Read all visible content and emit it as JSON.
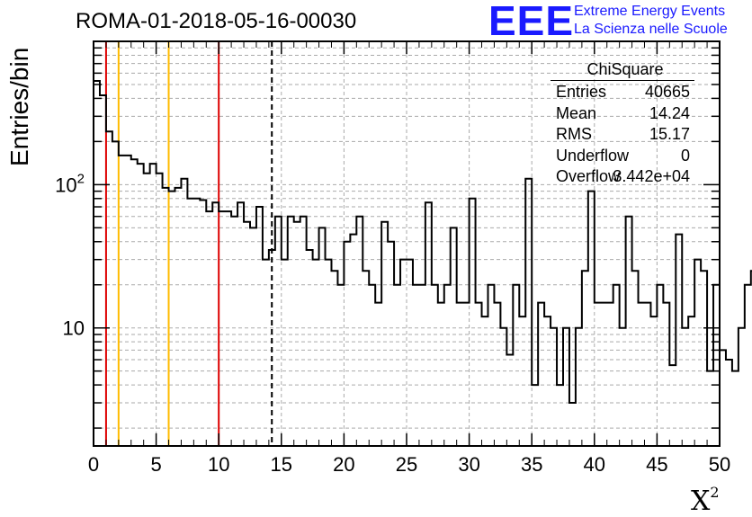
{
  "title": "ROMA-01-2018-05-16-00030",
  "logo": {
    "mark": "EEE",
    "line1": "Extreme Energy Events",
    "line2": "La Scienza nelle Scuole",
    "color": "#1a1aff"
  },
  "axes": {
    "ylabel": "Entries/bin",
    "xlabel": "X",
    "xlabel_sup": "2"
  },
  "stats": {
    "title": "ChiSquare",
    "rows": [
      {
        "key": "Entries",
        "value": "40665"
      },
      {
        "key": "Mean",
        "value": "14.24"
      },
      {
        "key": "RMS",
        "value": "15.17"
      },
      {
        "key": "Underflow",
        "value": "0"
      },
      {
        "key": "Overflow",
        "value": "3.442e+04"
      }
    ]
  },
  "chart_data": {
    "type": "histogram",
    "title": "ROMA-01-2018-05-16-00030",
    "xlabel": "X²",
    "ylabel": "Entries/bin",
    "xlim": [
      0,
      50
    ],
    "ylim": [
      1.5,
      1000
    ],
    "yscale": "log",
    "grid": true,
    "bin_width": 0.5,
    "x_ticks": [
      0,
      5,
      10,
      15,
      20,
      25,
      30,
      35,
      40,
      45,
      50
    ],
    "y_tick_labels": [
      {
        "value": 10,
        "label": "10"
      },
      {
        "value": 100,
        "label": "10^2"
      }
    ],
    "values": [
      530,
      420,
      235,
      200,
      160,
      160,
      150,
      140,
      120,
      140,
      120,
      95,
      90,
      95,
      110,
      80,
      80,
      78,
      65,
      75,
      65,
      65,
      60,
      75,
      55,
      50,
      70,
      30,
      35,
      60,
      30,
      60,
      55,
      60,
      35,
      30,
      50,
      30,
      25,
      20,
      40,
      45,
      60,
      25,
      20,
      15,
      55,
      40,
      20,
      30,
      30,
      20,
      20,
      75,
      20,
      15,
      20,
      50,
      15,
      15,
      80,
      15,
      12,
      20,
      15,
      10,
      6.5,
      20,
      12,
      110,
      4,
      15,
      12,
      10,
      4,
      10,
      3,
      10,
      25,
      90,
      15,
      15,
      15,
      20,
      10,
      60,
      25,
      15,
      15,
      12,
      20,
      15,
      5.5,
      45,
      10,
      12,
      30,
      25,
      5,
      20,
      7,
      6,
      5,
      10,
      20,
      25,
      6,
      5,
      7,
      6,
      5,
      110,
      6,
      5,
      20,
      5,
      8,
      6,
      6.5,
      20,
      15,
      110,
      5,
      4,
      15,
      4,
      10,
      10,
      70,
      12,
      10,
      10,
      12,
      4,
      25,
      30,
      5,
      8,
      30,
      20,
      10,
      15,
      10,
      3,
      120,
      9,
      10,
      10,
      10,
      15,
      12,
      6,
      5,
      6,
      5,
      6,
      12,
      5,
      6,
      5,
      5,
      6,
      7,
      5,
      40,
      30,
      30,
      8,
      50,
      10,
      5,
      15,
      10,
      8,
      5,
      6,
      20,
      12,
      5,
      6,
      10,
      7,
      6,
      5,
      4,
      3,
      6,
      110,
      12,
      9,
      9,
      12,
      8,
      4,
      5,
      12,
      8,
      10,
      9,
      15,
      9,
      4,
      5,
      6,
      15
    ],
    "vertical_lines": [
      {
        "x": 1,
        "color": "#dd0000",
        "style": "solid"
      },
      {
        "x": 2,
        "color": "#ffbb00",
        "style": "solid"
      },
      {
        "x": 6,
        "color": "#ffbb00",
        "style": "solid"
      },
      {
        "x": 10,
        "color": "#dd0000",
        "style": "solid"
      },
      {
        "x": 14.24,
        "color": "#000000",
        "style": "dashed"
      }
    ]
  }
}
